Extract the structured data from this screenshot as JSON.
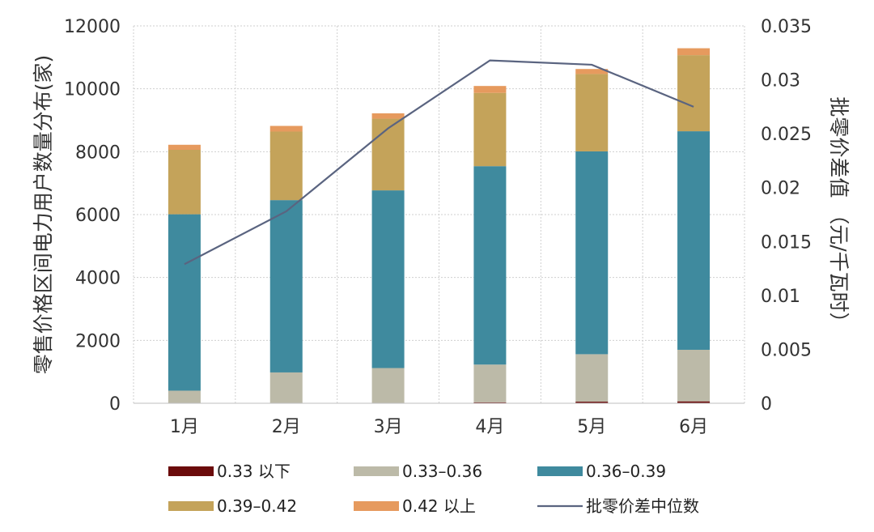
{
  "chart_data": {
    "type": "bar",
    "stacked": true,
    "categories": [
      "1月",
      "2月",
      "3月",
      "4月",
      "5月",
      "6月"
    ],
    "series": [
      {
        "name": "0.33 以下",
        "values": [
          0,
          0,
          0,
          30,
          50,
          60
        ],
        "color": "#6b0b0b"
      },
      {
        "name": "0.33–0.36",
        "values": [
          400,
          980,
          1120,
          1200,
          1510,
          1640
        ],
        "color": "#bcbaa8"
      },
      {
        "name": "0.36–0.39",
        "values": [
          5610,
          5480,
          5650,
          6310,
          6450,
          6950
        ],
        "color": "#3f8a9e"
      },
      {
        "name": "0.39–0.42",
        "values": [
          2050,
          2180,
          2280,
          2330,
          2460,
          2420
        ],
        "color": "#c4a35a"
      },
      {
        "name": "0.42 以上",
        "values": [
          160,
          180,
          170,
          220,
          160,
          220
        ],
        "color": "#e69a5e"
      }
    ],
    "line_series": {
      "name": "批零价差中位数",
      "axis": "right",
      "values": [
        0.0129,
        0.0178,
        0.0255,
        0.0318,
        0.0314,
        0.0275
      ],
      "color": "#5a6480"
    },
    "ylabel": "零售价格区间电力用户数量分布(家)",
    "ylabel_right": "批零价差值 （元/千瓦时）",
    "ylim": [
      0,
      12000
    ],
    "ylim_right": [
      0,
      0.035
    ],
    "yticks": [
      "0",
      "2000",
      "4000",
      "6000",
      "8000",
      "10000",
      "12000"
    ],
    "yticks_right": [
      "0",
      "0.005",
      "0.01",
      "0.015",
      "0.02",
      "0.025",
      "0.03",
      "0.035"
    ],
    "grid": true,
    "legend_position": "bottom"
  }
}
